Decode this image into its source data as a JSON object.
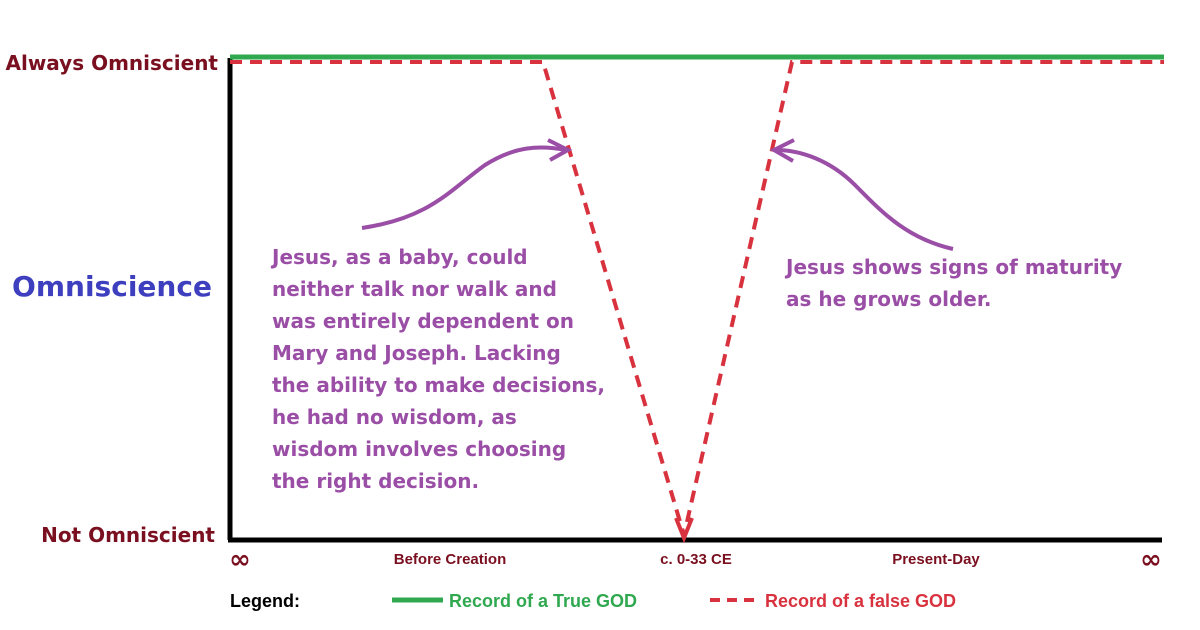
{
  "y_axis": {
    "title": "Omniscience",
    "top_label": "Always Omniscient",
    "bottom_label": "Not Omniscient"
  },
  "x_axis": {
    "left_symbol": "∞",
    "right_symbol": "∞",
    "ticks": [
      "Before Creation",
      "c. 0-33 CE",
      "Present-Day"
    ]
  },
  "annotations": {
    "left": [
      "Jesus, as a baby, could",
      "neither talk nor walk and",
      "was entirely dependent on",
      "Mary and Joseph. Lacking",
      "the ability to make decisions,",
      "he had no wisdom, as",
      "wisdom involves choosing",
      "the right decision."
    ],
    "right": [
      "Jesus shows signs of maturity",
      "as he grows older."
    ]
  },
  "legend": {
    "title": "Legend:",
    "true_label": "Record of a True GOD",
    "false_label": "Record of a false GOD"
  },
  "colors": {
    "true_line": "#2fa84f",
    "false_line": "#d9323f",
    "arrow": "#9a4ea6",
    "label": "#7a0f1f",
    "axis_title": "#3d3fbf"
  }
}
